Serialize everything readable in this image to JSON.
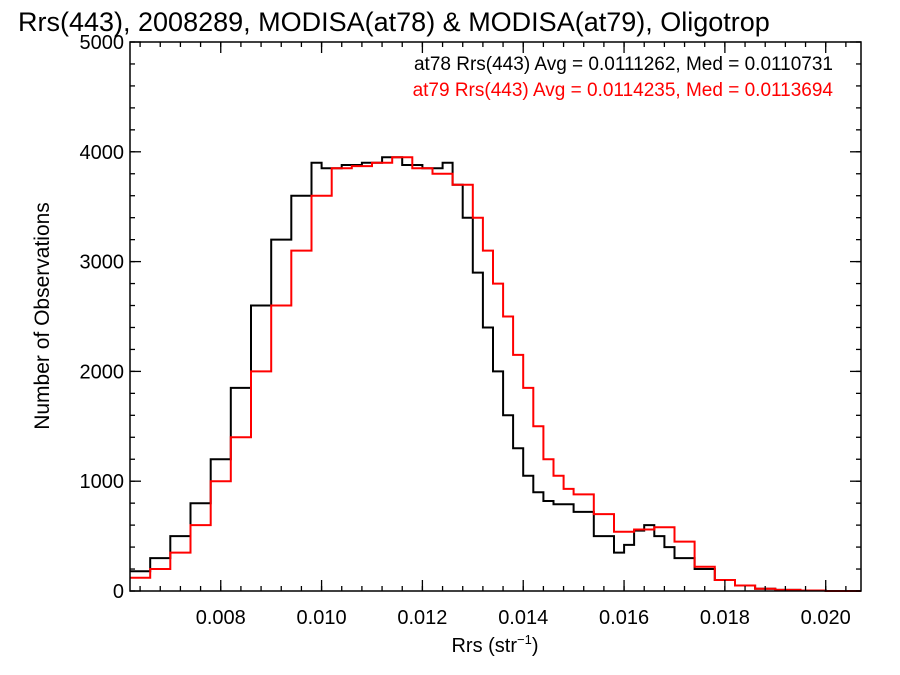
{
  "chart_data": {
    "type": "line",
    "title": "Rrs(443), 2008289, MODISA(at78) & MODISA(at79), Oligotrop",
    "xlabel": "Rrs (str",
    "xlabel_sup": "−1",
    "xlabel_tail": ")",
    "ylabel": "Number of Observations",
    "xlim": [
      0.0062,
      0.0207
    ],
    "ylim": [
      0,
      5000
    ],
    "xticks": [
      {
        "value": 0.008,
        "label": "0.008"
      },
      {
        "value": 0.01,
        "label": "0.010"
      },
      {
        "value": 0.012,
        "label": "0.012"
      },
      {
        "value": 0.014,
        "label": "0.014"
      },
      {
        "value": 0.016,
        "label": "0.016"
      },
      {
        "value": 0.018,
        "label": "0.018"
      },
      {
        "value": 0.02,
        "label": "0.020"
      }
    ],
    "yticks": [
      {
        "value": 0,
        "label": "0"
      },
      {
        "value": 1000,
        "label": "1000"
      },
      {
        "value": 2000,
        "label": "2000"
      },
      {
        "value": 3000,
        "label": "3000"
      },
      {
        "value": 4000,
        "label": "4000"
      },
      {
        "value": 5000,
        "label": "5000"
      }
    ],
    "grid": false,
    "legend_position": "top-right",
    "annotations": [
      {
        "text": "at78 Rrs(443) Avg = 0.0111262, Med = 0.0110731",
        "color": "#000000"
      },
      {
        "text": "at79 Rrs(443) Avg = 0.0114235, Med = 0.0113694",
        "color": "#ff0000"
      }
    ],
    "series": [
      {
        "color": "#000000",
        "x": [
          0.0062,
          0.0066,
          0.007,
          0.0074,
          0.0078,
          0.0082,
          0.0086,
          0.009,
          0.0094,
          0.0098,
          0.01,
          0.0104,
          0.0108,
          0.0112,
          0.0116,
          0.012,
          0.0124,
          0.0126,
          0.0128,
          0.013,
          0.0132,
          0.0134,
          0.0136,
          0.0138,
          0.014,
          0.0142,
          0.0144,
          0.0146,
          0.015,
          0.0154,
          0.0158,
          0.016,
          0.0162,
          0.0164,
          0.0166,
          0.0168,
          0.017,
          0.0174,
          0.0178,
          0.0182,
          0.0186,
          0.019,
          0.0195,
          0.02,
          0.0207
        ],
        "y": [
          180,
          300,
          500,
          800,
          1200,
          1850,
          2600,
          3200,
          3600,
          3900,
          3850,
          3880,
          3900,
          3950,
          3880,
          3850,
          3900,
          3700,
          3400,
          2900,
          2400,
          2000,
          1600,
          1300,
          1050,
          900,
          820,
          790,
          720,
          500,
          350,
          420,
          550,
          600,
          500,
          400,
          300,
          200,
          100,
          50,
          20,
          10,
          5,
          0,
          0
        ]
      },
      {
        "color": "#ff0000",
        "x": [
          0.0062,
          0.0066,
          0.007,
          0.0074,
          0.0078,
          0.0082,
          0.0086,
          0.009,
          0.0094,
          0.0098,
          0.0102,
          0.0106,
          0.011,
          0.0114,
          0.0118,
          0.0122,
          0.0126,
          0.013,
          0.0132,
          0.0134,
          0.0136,
          0.0138,
          0.014,
          0.0142,
          0.0144,
          0.0146,
          0.0148,
          0.015,
          0.0154,
          0.0158,
          0.0162,
          0.0166,
          0.017,
          0.0174,
          0.0178,
          0.0182,
          0.0186,
          0.019,
          0.0195,
          0.02,
          0.0207
        ],
        "y": [
          120,
          200,
          350,
          600,
          1000,
          1400,
          2000,
          2600,
          3100,
          3600,
          3850,
          3870,
          3900,
          3950,
          3850,
          3800,
          3700,
          3400,
          3100,
          2800,
          2500,
          2150,
          1850,
          1500,
          1200,
          1050,
          930,
          880,
          700,
          540,
          560,
          580,
          450,
          220,
          100,
          50,
          20,
          10,
          5,
          0,
          0
        ]
      }
    ]
  }
}
